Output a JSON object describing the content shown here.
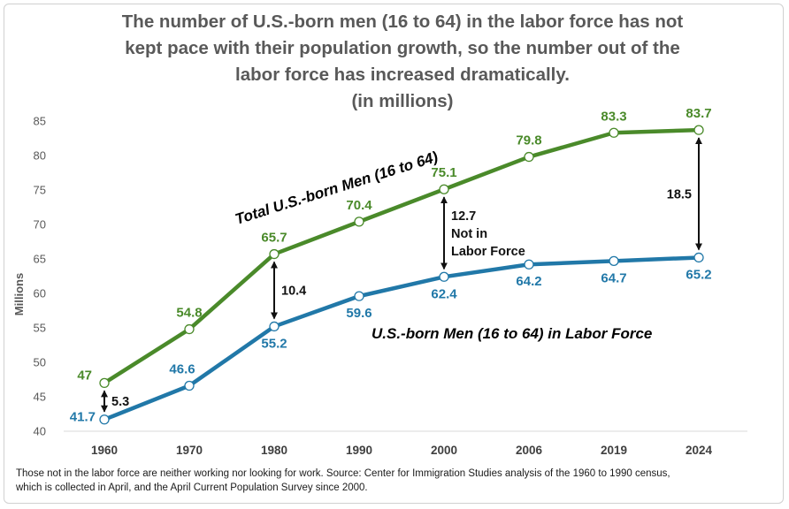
{
  "chart_data": {
    "type": "line",
    "title_lines": [
      "The number of U.S.-born men (16 to 64) in the labor force has not",
      "kept pace with their population growth, so the number out of the",
      "labor force has increased dramatically.",
      "(in millions)"
    ],
    "ylabel": "Millions",
    "ylim": [
      40,
      85
    ],
    "yticks": [
      "40",
      "45",
      "50",
      "55",
      "60",
      "65",
      "70",
      "75",
      "80",
      "85"
    ],
    "categories": [
      "1960",
      "1970",
      "1980",
      "1990",
      "2000",
      "2006",
      "2019",
      "2024"
    ],
    "series": [
      {
        "name": "Total U.S.-born Men (16 to 64)",
        "color": "#4a8a2a",
        "values": [
          47,
          54.8,
          65.7,
          70.4,
          75.1,
          79.8,
          83.3,
          83.7
        ],
        "labels": [
          "47",
          "54.8",
          "65.7",
          "70.4",
          "75.1",
          "79.8",
          "83.3",
          "83.7"
        ]
      },
      {
        "name": "U.S.-born Men (16 to 64) in Labor Force",
        "color": "#2178a8",
        "values": [
          41.7,
          46.6,
          55.2,
          59.6,
          62.4,
          64.2,
          64.7,
          65.2
        ],
        "labels": [
          "41.7",
          "46.6",
          "55.2",
          "59.6",
          "62.4",
          "64.2",
          "64.7",
          "65.2"
        ]
      }
    ],
    "gap_annotations": [
      {
        "category": "1960",
        "label_lines": [
          "5.3"
        ]
      },
      {
        "category": "1980",
        "label_lines": [
          "10.4"
        ]
      },
      {
        "category": "2000",
        "label_lines": [
          "12.7",
          "Not in",
          "Labor Force"
        ]
      },
      {
        "category": "2024",
        "label_lines": [
          "18.5"
        ]
      }
    ],
    "note_lines": [
      "Those not in the labor force are neither working nor looking for work. Source: Center for Immigration Studies analysis of the 1960 to 1990 census,",
      "which is collected in April, and the April Current Population Survey since 2000."
    ]
  }
}
